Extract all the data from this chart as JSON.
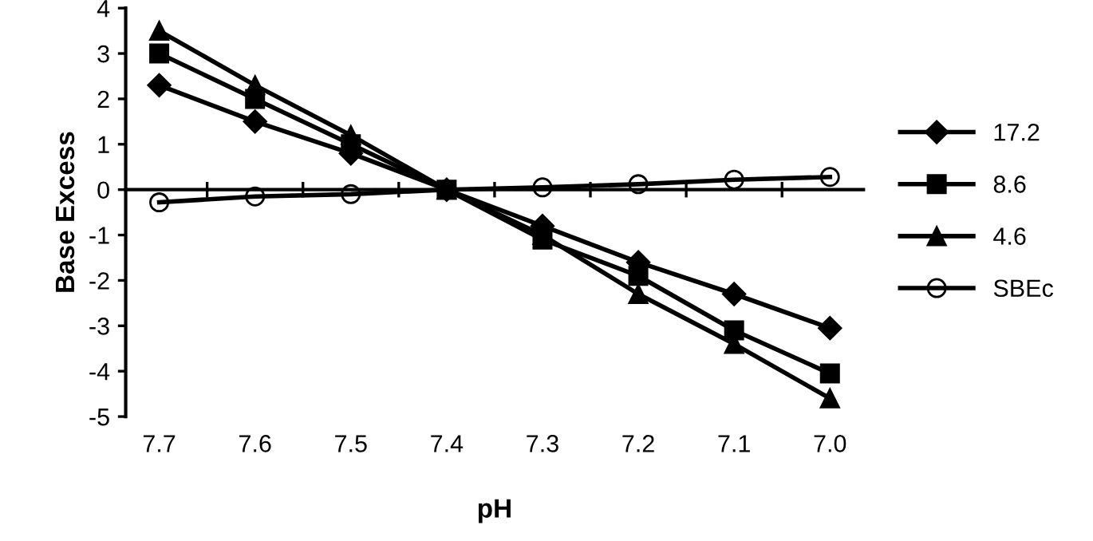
{
  "chart_data": {
    "type": "line",
    "xlabel": "pH",
    "ylabel": "Base Excess",
    "categories": [
      "7.7",
      "7.6",
      "7.5",
      "7.4",
      "7.3",
      "7.2",
      "7.1",
      "7.0"
    ],
    "series": [
      {
        "name": "17.2",
        "color": "#000000",
        "marker": "diamond",
        "values": [
          2.3,
          1.5,
          0.8,
          0,
          -0.8,
          -1.6,
          -2.3,
          -3.05
        ]
      },
      {
        "name": "8.6",
        "color": "#000000",
        "marker": "square",
        "values": [
          3.0,
          2.0,
          1.0,
          0,
          -1.1,
          -1.9,
          -3.1,
          -4.05
        ]
      },
      {
        "name": "4.6",
        "color": "#000000",
        "marker": "triangle",
        "values": [
          3.5,
          2.3,
          1.2,
          0,
          -1.0,
          -2.3,
          -3.4,
          -4.6
        ]
      },
      {
        "name": "SBEc",
        "color": "#000000",
        "marker": "circle",
        "values": [
          -0.28,
          -0.15,
          -0.1,
          0,
          0.05,
          0.12,
          0.22,
          0.28
        ]
      }
    ],
    "ylim": [
      -5,
      4
    ],
    "yticks": [
      -5,
      -4,
      -3,
      -2,
      -1,
      0,
      1,
      2,
      3,
      4
    ],
    "legend": "right",
    "line_style": "solid"
  }
}
